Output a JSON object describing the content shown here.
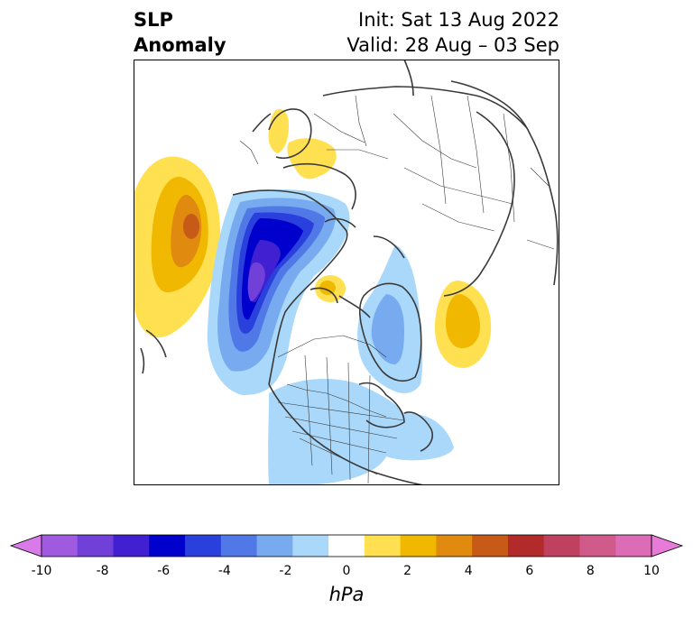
{
  "title": {
    "left_line1": "SLP",
    "left_line2": "Anomaly",
    "init": "Init: Sat 13 Aug 2022",
    "valid": "Valid: 28 Aug – 03 Sep"
  },
  "map": {
    "projection": "north-polar-stereographic",
    "anomaly_features": [
      {
        "name": "north-pacific-high",
        "sign": "positive",
        "peak_hpa": 5
      },
      {
        "name": "western-canada-low",
        "sign": "negative",
        "peak_hpa": -7
      },
      {
        "name": "scandinavia-high",
        "sign": "positive",
        "peak_hpa": 1
      },
      {
        "name": "arctic-high",
        "sign": "positive",
        "peak_hpa": 2
      },
      {
        "name": "atlantic-greenland-low",
        "sign": "negative",
        "peak_hpa": -3
      },
      {
        "name": "north-atlantic-high",
        "sign": "positive",
        "peak_hpa": 2
      },
      {
        "name": "eastern-us-low",
        "sign": "negative",
        "peak_hpa": -1
      }
    ]
  },
  "colorbar": {
    "units": "hPa",
    "colors": [
      "#d87ae8",
      "#a05ae0",
      "#7040d8",
      "#4020d0",
      "#0000cc",
      "#2a40dd",
      "#5078e6",
      "#78aaf0",
      "#aad8fa",
      "#ffffff",
      "#ffe050",
      "#f0b800",
      "#e08a10",
      "#c85a18",
      "#b22a2a",
      "#c04060",
      "#d05a8a",
      "#dc6cb6",
      "#e87ad8"
    ],
    "tick_labels": [
      "-10",
      "-8",
      "-6",
      "-4",
      "-2",
      "0",
      "2",
      "4",
      "6",
      "8",
      "10"
    ]
  }
}
